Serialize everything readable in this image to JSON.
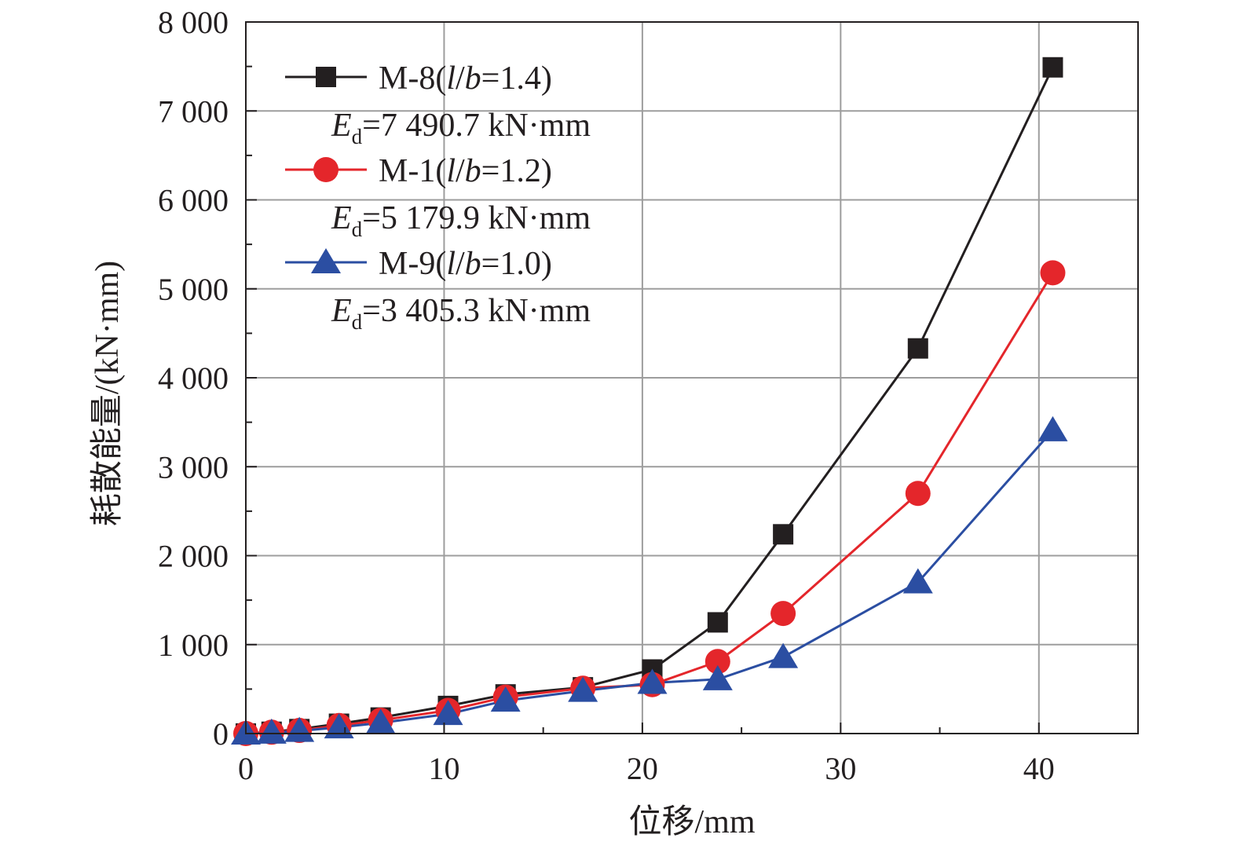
{
  "chart_data": {
    "type": "line",
    "xlabel": "位移/mm",
    "ylabel": "耗散能量/(kN·mm)",
    "xlim": [
      0,
      45
    ],
    "ylim": [
      0,
      8000
    ],
    "x_ticks": [
      0,
      10,
      20,
      30,
      40
    ],
    "x_tick_labels": [
      "0",
      "10",
      "20",
      "30",
      "40"
    ],
    "y_ticks": [
      0,
      1000,
      2000,
      3000,
      4000,
      5000,
      6000,
      7000,
      8000
    ],
    "y_tick_labels": [
      "0",
      "1 000",
      "2 000",
      "3 000",
      "4 000",
      "5 000",
      "6 000",
      "7 000",
      "8 000"
    ],
    "grid": true,
    "legend_position": "top-left",
    "series": [
      {
        "name": "M-8(l/b=1.4)",
        "note": "Ed=7 490.7 kN·mm",
        "color": "#231f20",
        "marker": "square",
        "x": [
          0,
          1.3,
          2.7,
          4.7,
          6.8,
          10.2,
          13.1,
          17.0,
          20.5,
          23.8,
          27.1,
          33.9,
          40.7
        ],
        "y": [
          0,
          20,
          50,
          110,
          180,
          310,
          440,
          520,
          720,
          1250,
          2240,
          4330,
          7490
        ]
      },
      {
        "name": "M-1(l/b=1.2)",
        "note": "Ed=5 179.9 kN·mm",
        "color": "#e4262b",
        "marker": "circle",
        "x": [
          0,
          1.3,
          2.7,
          4.7,
          6.8,
          10.2,
          13.1,
          17.0,
          20.5,
          23.8,
          27.1,
          33.9,
          40.7
        ],
        "y": [
          0,
          15,
          35,
          90,
          150,
          260,
          410,
          510,
          550,
          810,
          1350,
          2700,
          5180
        ]
      },
      {
        "name": "M-9(l/b=1.0)",
        "note": "Ed=3 405.3 kN·mm",
        "color": "#2b4ea2",
        "marker": "triangle",
        "x": [
          0,
          1.3,
          2.7,
          4.7,
          6.8,
          10.2,
          13.1,
          17.0,
          20.5,
          23.8,
          27.1,
          33.9,
          40.7
        ],
        "y": [
          0,
          10,
          30,
          70,
          120,
          220,
          370,
          480,
          570,
          610,
          860,
          1700,
          3410
        ]
      }
    ],
    "legend": [
      {
        "label_prefix": "M-8(",
        "label_italic_1": "l",
        "label_slash": "/",
        "label_italic_2": "b",
        "label_suffix": "=1.4)",
        "energy_symbol": "E",
        "energy_sub": "d",
        "energy_value": "=7 490.7 kN·mm"
      },
      {
        "label_prefix": "M-1(",
        "label_italic_1": "l",
        "label_slash": "/",
        "label_italic_2": "b",
        "label_suffix": "=1.2)",
        "energy_symbol": "E",
        "energy_sub": "d",
        "energy_value": "=5 179.9 kN·mm"
      },
      {
        "label_prefix": "M-9(",
        "label_italic_1": "l",
        "label_slash": "/",
        "label_italic_2": "b",
        "label_suffix": "=1.0)",
        "energy_symbol": "E",
        "energy_sub": "d",
        "energy_value": "=3 405.3 kN·mm"
      }
    ]
  }
}
